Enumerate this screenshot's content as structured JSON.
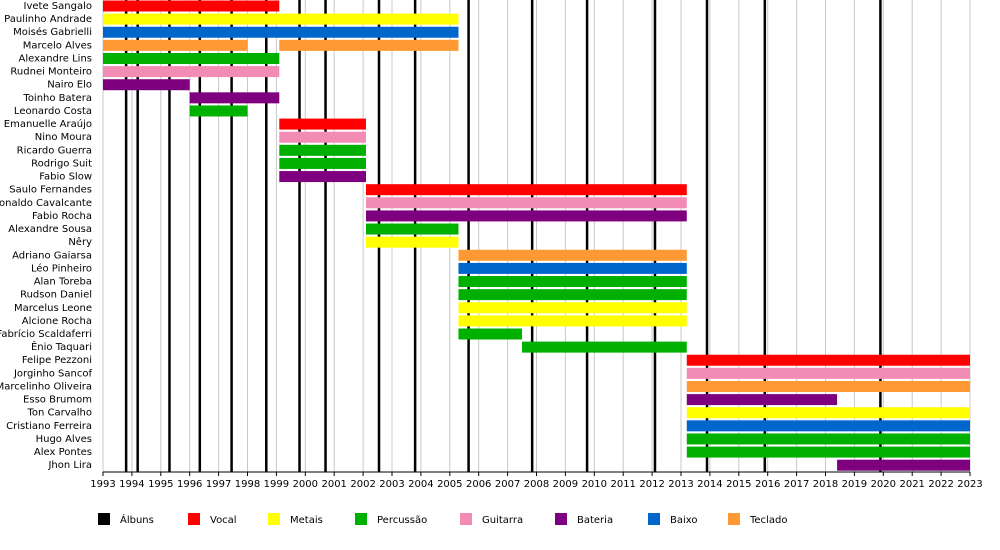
{
  "chart_data": {
    "type": "timeline",
    "categories": [
      "Ivete Sangalo",
      "Paulinho Andrade",
      "Moisés Gabrielli",
      "Marcelo Alves",
      "Alexandre Lins",
      "Rudnei Monteiro",
      "Nairo Elo",
      "Toinho Batera",
      "Leonardo Costa",
      "Emanuelle Araújo",
      "Nino Moura",
      "Ricardo Guerra",
      "Rodrigo Suit",
      "Fabio Slow",
      "Saulo Fernandes",
      "Ronaldo Cavalcante",
      "Fabio Rocha",
      "Alexandre Sousa",
      "Nêry",
      "Adriano Gaiarsa",
      "Léo Pinheiro",
      "Alan Toreba",
      "Rudson Daniel",
      "Marcelus Leone",
      "Alcione Rocha",
      "Fabrício Scaldaferri",
      "Ênio Taquari",
      "Felipe Pezzoni",
      "Jorginho Sancof",
      "Marcelinho Oliveira",
      "Esso Brumom",
      "Ton Carvalho",
      "Cristiano Ferreira",
      "Hugo Alves",
      "Alex Pontes",
      "Jhon Lira"
    ],
    "markers": {
      "name": "Álbuns",
      "color": "#000000",
      "x": [
        1993.8,
        1994.2,
        1995.3,
        1996.35,
        1997.45,
        1998.65,
        1999.8,
        2000.7,
        2002.55,
        2003.8,
        2005.65,
        2007.85,
        2009.75,
        2012.1,
        2013.9,
        2015.9,
        2019.9
      ]
    },
    "series": [
      {
        "name": "Vocal",
        "color": "#ff0000",
        "values": [
          [
            [
              1993,
              1999.1
            ]
          ],
          null,
          null,
          null,
          null,
          null,
          null,
          null,
          null,
          [
            [
              1999.1,
              2002.1
            ]
          ],
          null,
          null,
          null,
          null,
          [
            [
              2002.1,
              2013.2
            ]
          ],
          null,
          null,
          null,
          null,
          null,
          null,
          null,
          null,
          null,
          null,
          null,
          null,
          [
            [
              2013.2,
              2023
            ]
          ],
          null,
          null,
          null,
          null,
          null,
          null,
          null,
          null
        ]
      },
      {
        "name": "Metais",
        "color": "#ffff00",
        "values": [
          null,
          [
            [
              1993,
              2005.3
            ]
          ],
          null,
          null,
          null,
          null,
          null,
          null,
          null,
          null,
          null,
          null,
          null,
          null,
          null,
          null,
          null,
          null,
          [
            [
              2002.1,
              2005.3
            ]
          ],
          null,
          null,
          null,
          null,
          [
            [
              2005.3,
              2013.2
            ]
          ],
          [
            [
              2005.3,
              2013.2
            ]
          ],
          null,
          null,
          null,
          null,
          null,
          null,
          [
            [
              2013.2,
              2023
            ]
          ],
          null,
          null,
          null,
          null
        ]
      },
      {
        "name": "Percussão",
        "color": "#00b000",
        "values": [
          null,
          null,
          null,
          null,
          [
            [
              1993,
              1999.1
            ]
          ],
          null,
          null,
          null,
          [
            [
              1996,
              1998
            ]
          ],
          null,
          null,
          [
            [
              1999.1,
              2002.1
            ]
          ],
          [
            [
              1999.1,
              2002.1
            ]
          ],
          null,
          null,
          null,
          null,
          [
            [
              2002.1,
              2005.3
            ]
          ],
          null,
          null,
          null,
          [
            [
              2005.3,
              2013.2
            ]
          ],
          [
            [
              2005.3,
              2013.2
            ]
          ],
          null,
          null,
          [
            [
              2005.3,
              2007.5
            ]
          ],
          [
            [
              2007.5,
              2013.2
            ]
          ],
          null,
          null,
          null,
          null,
          null,
          null,
          [
            [
              2013.2,
              2023
            ]
          ],
          [
            [
              2013.2,
              2023
            ]
          ],
          null
        ]
      },
      {
        "name": "Guitarra",
        "color": "#f28cb4",
        "values": [
          null,
          null,
          null,
          null,
          null,
          [
            [
              1993,
              1999.1
            ]
          ],
          null,
          null,
          null,
          null,
          [
            [
              1999.1,
              2002.1
            ]
          ],
          null,
          null,
          null,
          null,
          [
            [
              2002.1,
              2013.2
            ]
          ],
          null,
          null,
          null,
          null,
          null,
          null,
          null,
          null,
          null,
          null,
          null,
          null,
          [
            [
              2013.2,
              2023
            ]
          ],
          null,
          null,
          null,
          null,
          null,
          null,
          null
        ]
      },
      {
        "name": "Bateria",
        "color": "#7f007f",
        "values": [
          null,
          null,
          null,
          null,
          null,
          null,
          [
            [
              1993,
              1996
            ]
          ],
          [
            [
              1996,
              1999.1
            ]
          ],
          null,
          null,
          null,
          null,
          null,
          [
            [
              1999.1,
              2002.1
            ]
          ],
          null,
          null,
          [
            [
              2002.1,
              2013.2
            ]
          ],
          null,
          null,
          null,
          null,
          null,
          null,
          null,
          null,
          null,
          null,
          null,
          null,
          null,
          [
            [
              2013.2,
              2018.4
            ]
          ],
          null,
          null,
          null,
          null,
          [
            [
              2018.4,
              2023
            ]
          ]
        ]
      },
      {
        "name": "Baixo",
        "color": "#0066cc",
        "values": [
          null,
          null,
          [
            [
              1993,
              2005.3
            ]
          ],
          null,
          null,
          null,
          null,
          null,
          null,
          null,
          null,
          null,
          null,
          null,
          null,
          null,
          null,
          null,
          null,
          null,
          [
            [
              2005.3,
              2013.2
            ]
          ],
          null,
          null,
          null,
          null,
          null,
          null,
          null,
          null,
          null,
          null,
          null,
          [
            [
              2013.2,
              2023
            ]
          ],
          null,
          null,
          null
        ]
      },
      {
        "name": "Teclado",
        "color": "#ff9933",
        "values": [
          null,
          null,
          null,
          [
            [
              1993,
              1998
            ],
            [
              1999.1,
              2005.3
            ]
          ],
          null,
          null,
          null,
          null,
          null,
          null,
          null,
          null,
          null,
          null,
          null,
          null,
          null,
          null,
          null,
          [
            [
              2005.3,
              2013.2
            ]
          ],
          null,
          null,
          null,
          null,
          null,
          null,
          null,
          null,
          null,
          [
            [
              2013.2,
              2023
            ]
          ],
          null,
          null,
          null,
          null,
          null,
          null
        ]
      }
    ],
    "xlim": [
      1993,
      2023
    ],
    "xticks": [
      1993,
      1994,
      1995,
      1996,
      1997,
      1998,
      1999,
      2000,
      2001,
      2002,
      2003,
      2004,
      2005,
      2006,
      2007,
      2008,
      2009,
      2010,
      2011,
      2012,
      2013,
      2014,
      2015,
      2016,
      2017,
      2018,
      2019,
      2020,
      2021,
      2022,
      2023
    ],
    "grid": true
  }
}
